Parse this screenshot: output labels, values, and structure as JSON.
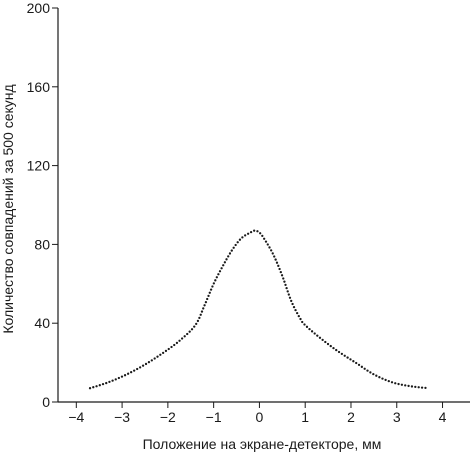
{
  "chart_data": {
    "type": "scatter",
    "title": "",
    "xlabel": "Положение на экране-детекторе, мм",
    "ylabel": "Количество совпадений за 500 секунд",
    "xlim": [
      -4.4,
      4.6
    ],
    "ylim": [
      0,
      200
    ],
    "x_ticks": [
      -4,
      -3,
      -2,
      -1,
      0,
      1,
      2,
      3,
      4
    ],
    "x_tick_labels": [
      "−4",
      "−3",
      "−2",
      "−1",
      "0",
      "1",
      "2",
      "3",
      "4"
    ],
    "y_ticks": [
      0,
      40,
      80,
      120,
      160,
      200
    ],
    "y_tick_labels": [
      "0",
      "40",
      "80",
      "120",
      "160",
      "200"
    ],
    "grid": false,
    "legend": "none",
    "marker_color": "#1a1a1a",
    "series": [
      {
        "x": [
          -3.7,
          -3.3,
          -2.9,
          -2.5,
          -2.1,
          -1.75,
          -1.4,
          -1.2,
          -1.0,
          -0.8,
          -0.6,
          -0.4,
          -0.2,
          -0.1,
          0.0,
          0.1,
          0.3,
          0.5,
          0.7,
          0.9,
          1.0,
          1.3,
          1.7,
          2.1,
          2.5,
          2.9,
          3.3,
          3.7
        ],
        "y": [
          7,
          10,
          14,
          19,
          25,
          31,
          39,
          49,
          60,
          69,
          77,
          83,
          86,
          87,
          86,
          83,
          75,
          64,
          51,
          42,
          39,
          33,
          26,
          20,
          14,
          10,
          8,
          7
        ]
      }
    ]
  }
}
